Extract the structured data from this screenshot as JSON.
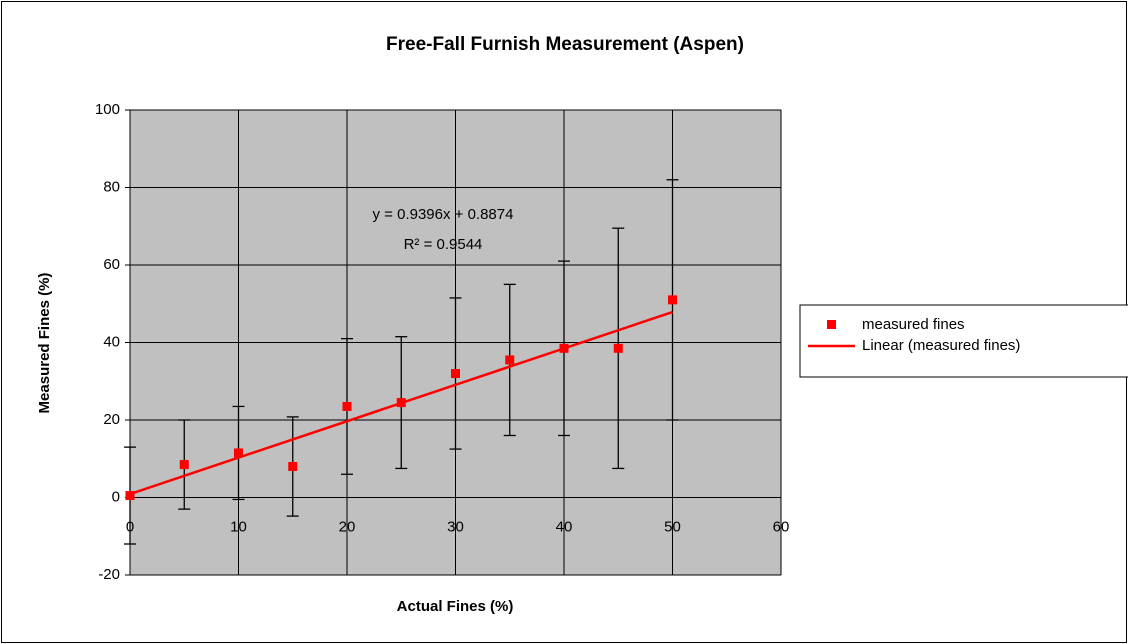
{
  "chart_data": {
    "type": "scatter",
    "title": "Free-Fall Furnish Measurement (Aspen)",
    "x_label": "Actual Fines (%)",
    "y_label": "Measured Fines (%)",
    "x": [
      0,
      5,
      10,
      15,
      20,
      25,
      30,
      35,
      40,
      45,
      50
    ],
    "series": [
      {
        "name": "measured fines",
        "color": "#ff0000",
        "values": [
          0.5,
          8.5,
          11.5,
          8,
          23.5,
          24.5,
          32,
          35.5,
          38.5,
          38.5,
          51
        ],
        "errors": [
          12.5,
          11.5,
          12,
          12.8,
          17.5,
          17,
          19.5,
          19.5,
          22.5,
          31,
          31
        ]
      }
    ],
    "trendline": {
      "name": "Linear (measured fines)",
      "color": "#ff0000",
      "slope": 0.9396,
      "intercept": 0.8874,
      "equation": "y = 0.9396x + 0.8874",
      "r2_label": "R² = 0.9544"
    },
    "xlim": [
      0,
      60
    ],
    "xticks": [
      0,
      10,
      20,
      30,
      40,
      50,
      60
    ],
    "ylim": [
      -20,
      100
    ],
    "yticks": [
      -20,
      0,
      20,
      40,
      60,
      80,
      100
    ],
    "grid": true,
    "legend": "right"
  }
}
